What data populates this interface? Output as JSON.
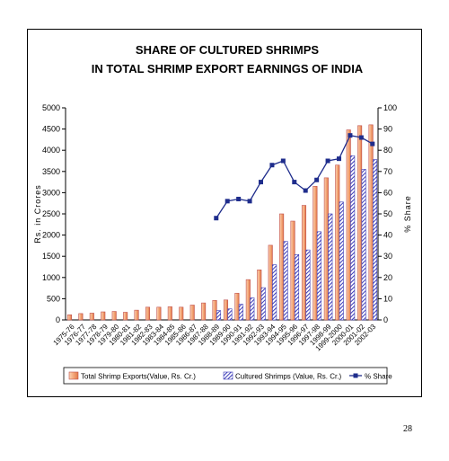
{
  "slide": {
    "page_number": "28"
  },
  "chart_data": {
    "type": "bar",
    "title": [
      "SHARE OF CULTURED SHRIMPS",
      "IN TOTAL SHRIMP EXPORT EARNINGS OF INDIA"
    ],
    "ylabel": "Rs. in Crores",
    "y2label": "% Share",
    "ylim": [
      0,
      5000
    ],
    "y2lim": [
      0,
      100
    ],
    "yticks": [
      "0",
      "500",
      "1000",
      "1500",
      "2000",
      "2500",
      "3000",
      "3500",
      "4000",
      "4500",
      "5000"
    ],
    "y2ticks": [
      "0",
      "10",
      "20",
      "30",
      "40",
      "50",
      "60",
      "70",
      "80",
      "90",
      "100"
    ],
    "grid": false,
    "legend_position": "bottom",
    "categories": [
      "1975-76",
      "1976-77",
      "1977-78",
      "1978-79",
      "1979-80",
      "1980-81",
      "1981-82",
      "1982-83",
      "1983-84",
      "1984-85",
      "1985-86",
      "1986-87",
      "1987-88",
      "1988-89",
      "1989-90",
      "1990-91",
      "1991-92",
      "1992-93",
      "1993-94",
      "1994-95",
      "1995-96",
      "1996-97",
      "1997-98",
      "1998-99",
      "1999-2000",
      "2000-01",
      "2001-02",
      "2002-03"
    ],
    "series": [
      {
        "name": "Total Shrimp Exports(Value, Rs. Cr.)",
        "kind": "bar",
        "color": "#f4b183",
        "stroke": "#c0504d",
        "values": [
          120,
          150,
          160,
          190,
          200,
          180,
          230,
          300,
          300,
          310,
          300,
          350,
          400,
          460,
          470,
          630,
          950,
          1180,
          1760,
          2500,
          2330,
          2700,
          3150,
          3350,
          3650,
          4480,
          4580,
          4600
        ]
      },
      {
        "name": "Cultured Shrimps (Value, Rs. Cr.)",
        "kind": "bar-hatched",
        "color": "#3b3bb8",
        "values": [
          null,
          null,
          null,
          null,
          null,
          null,
          null,
          null,
          null,
          null,
          null,
          null,
          null,
          220,
          260,
          370,
          520,
          760,
          1300,
          1850,
          1540,
          1650,
          2080,
          2500,
          2780,
          3870,
          3550,
          3780
        ]
      },
      {
        "name": "% Share",
        "kind": "line",
        "axis": "right",
        "color": "#1f2d8c",
        "values": [
          null,
          null,
          null,
          null,
          null,
          null,
          null,
          null,
          null,
          null,
          null,
          null,
          null,
          48,
          56,
          57,
          56,
          65,
          73,
          75,
          65,
          61,
          66,
          75,
          76,
          87,
          86,
          83
        ]
      }
    ]
  }
}
